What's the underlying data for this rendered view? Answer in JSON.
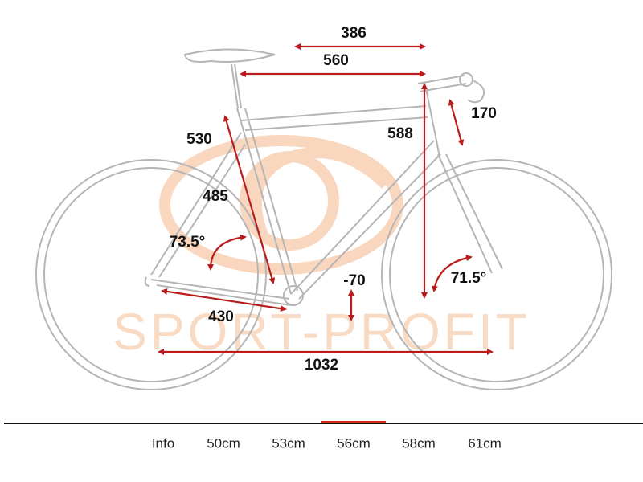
{
  "watermark": "SPORT-PROFIT",
  "dimensions": [
    "386",
    "560",
    "588",
    "170",
    "530",
    "485",
    "73.5°",
    "-70",
    "71.5°",
    "430",
    "1032"
  ],
  "tabs": [
    "Info",
    "50cm",
    "53cm",
    "56cm",
    "58cm",
    "61cm"
  ],
  "active_tab": 3
}
